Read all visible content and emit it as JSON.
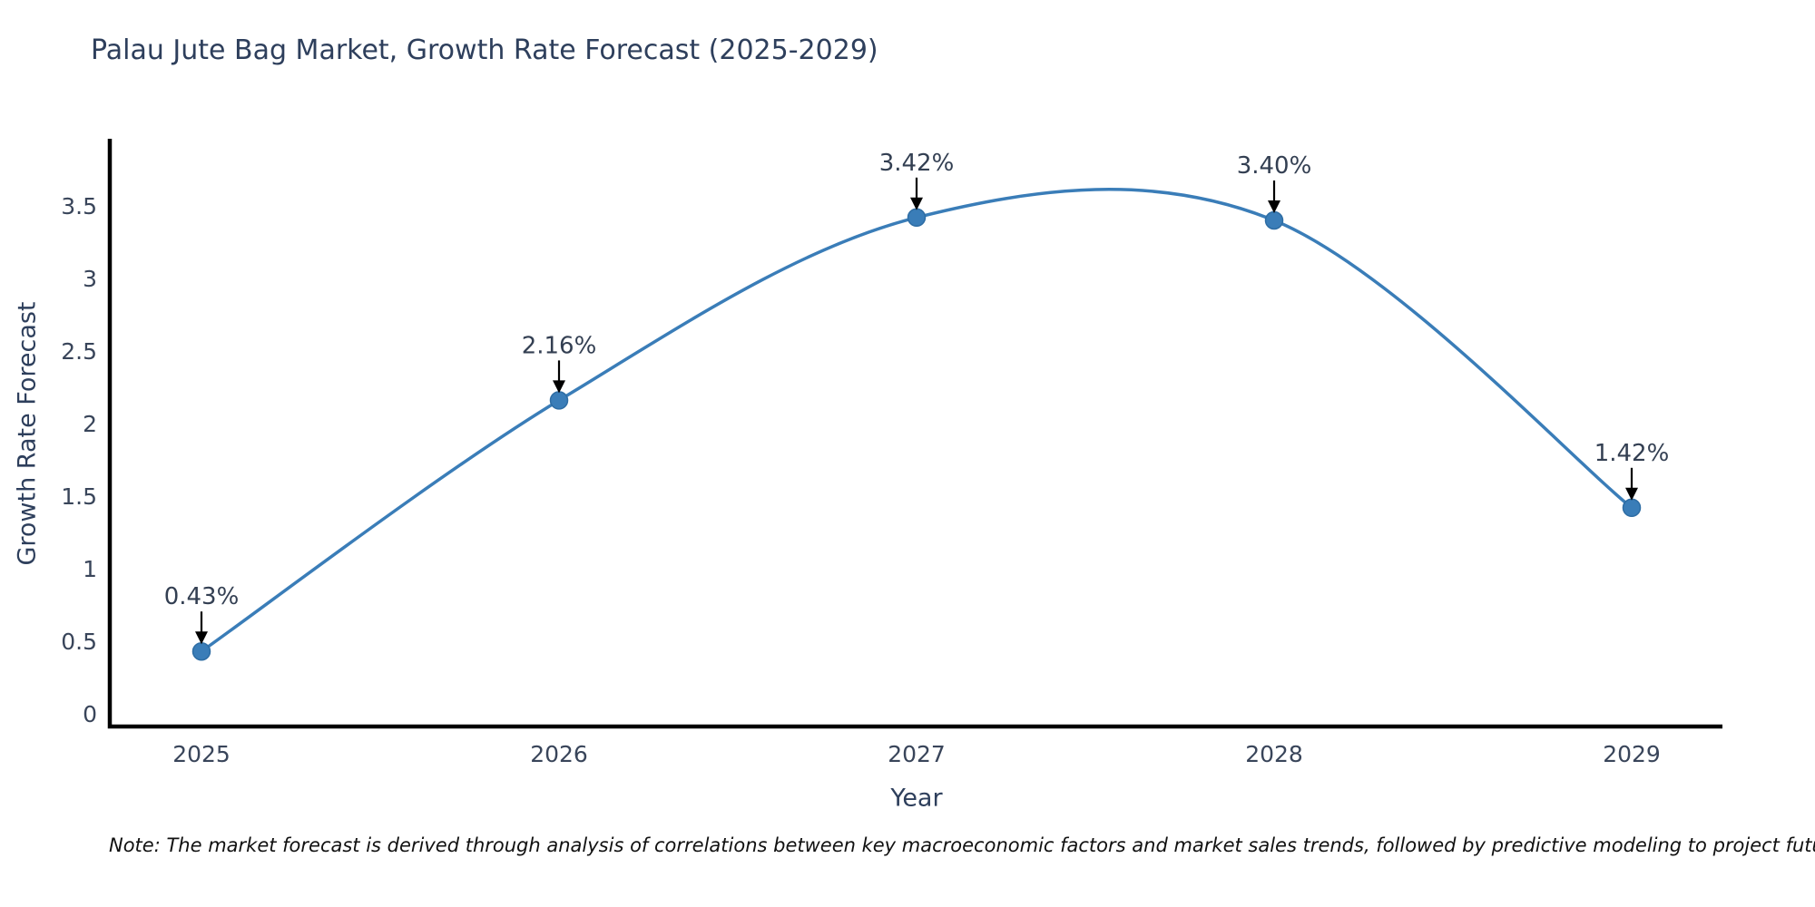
{
  "title": "Palau Jute Bag Market, Growth Rate Forecast (2025-2029)",
  "note": "Note: The market forecast is derived through analysis of correlations between key macroeconomic factors and market sales trends, followed by predictive modeling to project future sales",
  "chart_data": {
    "type": "line",
    "line_shape": "spline",
    "title": "Palau Jute Bag Market, Growth Rate Forecast (2025-2029)",
    "xlabel": "Year",
    "ylabel": "Growth Rate Forecast",
    "categories": [
      "2025",
      "2026",
      "2027",
      "2028",
      "2029"
    ],
    "series": [
      {
        "name": "Growth Rate Forecast",
        "values": [
          0.43,
          2.16,
          3.42,
          3.4,
          1.42
        ],
        "point_labels": [
          "0.43%",
          "2.16%",
          "3.42%",
          "3.40%",
          "1.42%"
        ]
      }
    ],
    "ytick_values": [
      0,
      0.5,
      1,
      1.5,
      2,
      2.5,
      3,
      3.5
    ],
    "ytick_labels": [
      "0",
      "0.5",
      "1",
      "1.5",
      "2",
      "2.5",
      "3",
      "3.5"
    ],
    "ylim": [
      -0.1,
      3.95
    ],
    "grid": false,
    "legend": "none",
    "colors": {
      "line": "#3a7db8",
      "marker_fill": "#3a7db8",
      "marker_stroke": "#2e6da4",
      "axis": "#000000",
      "tick_text": "#39455a",
      "annotation_text": "#333f52",
      "annotation_arrow": "#000000",
      "title_text": "#2e3f5c"
    }
  }
}
